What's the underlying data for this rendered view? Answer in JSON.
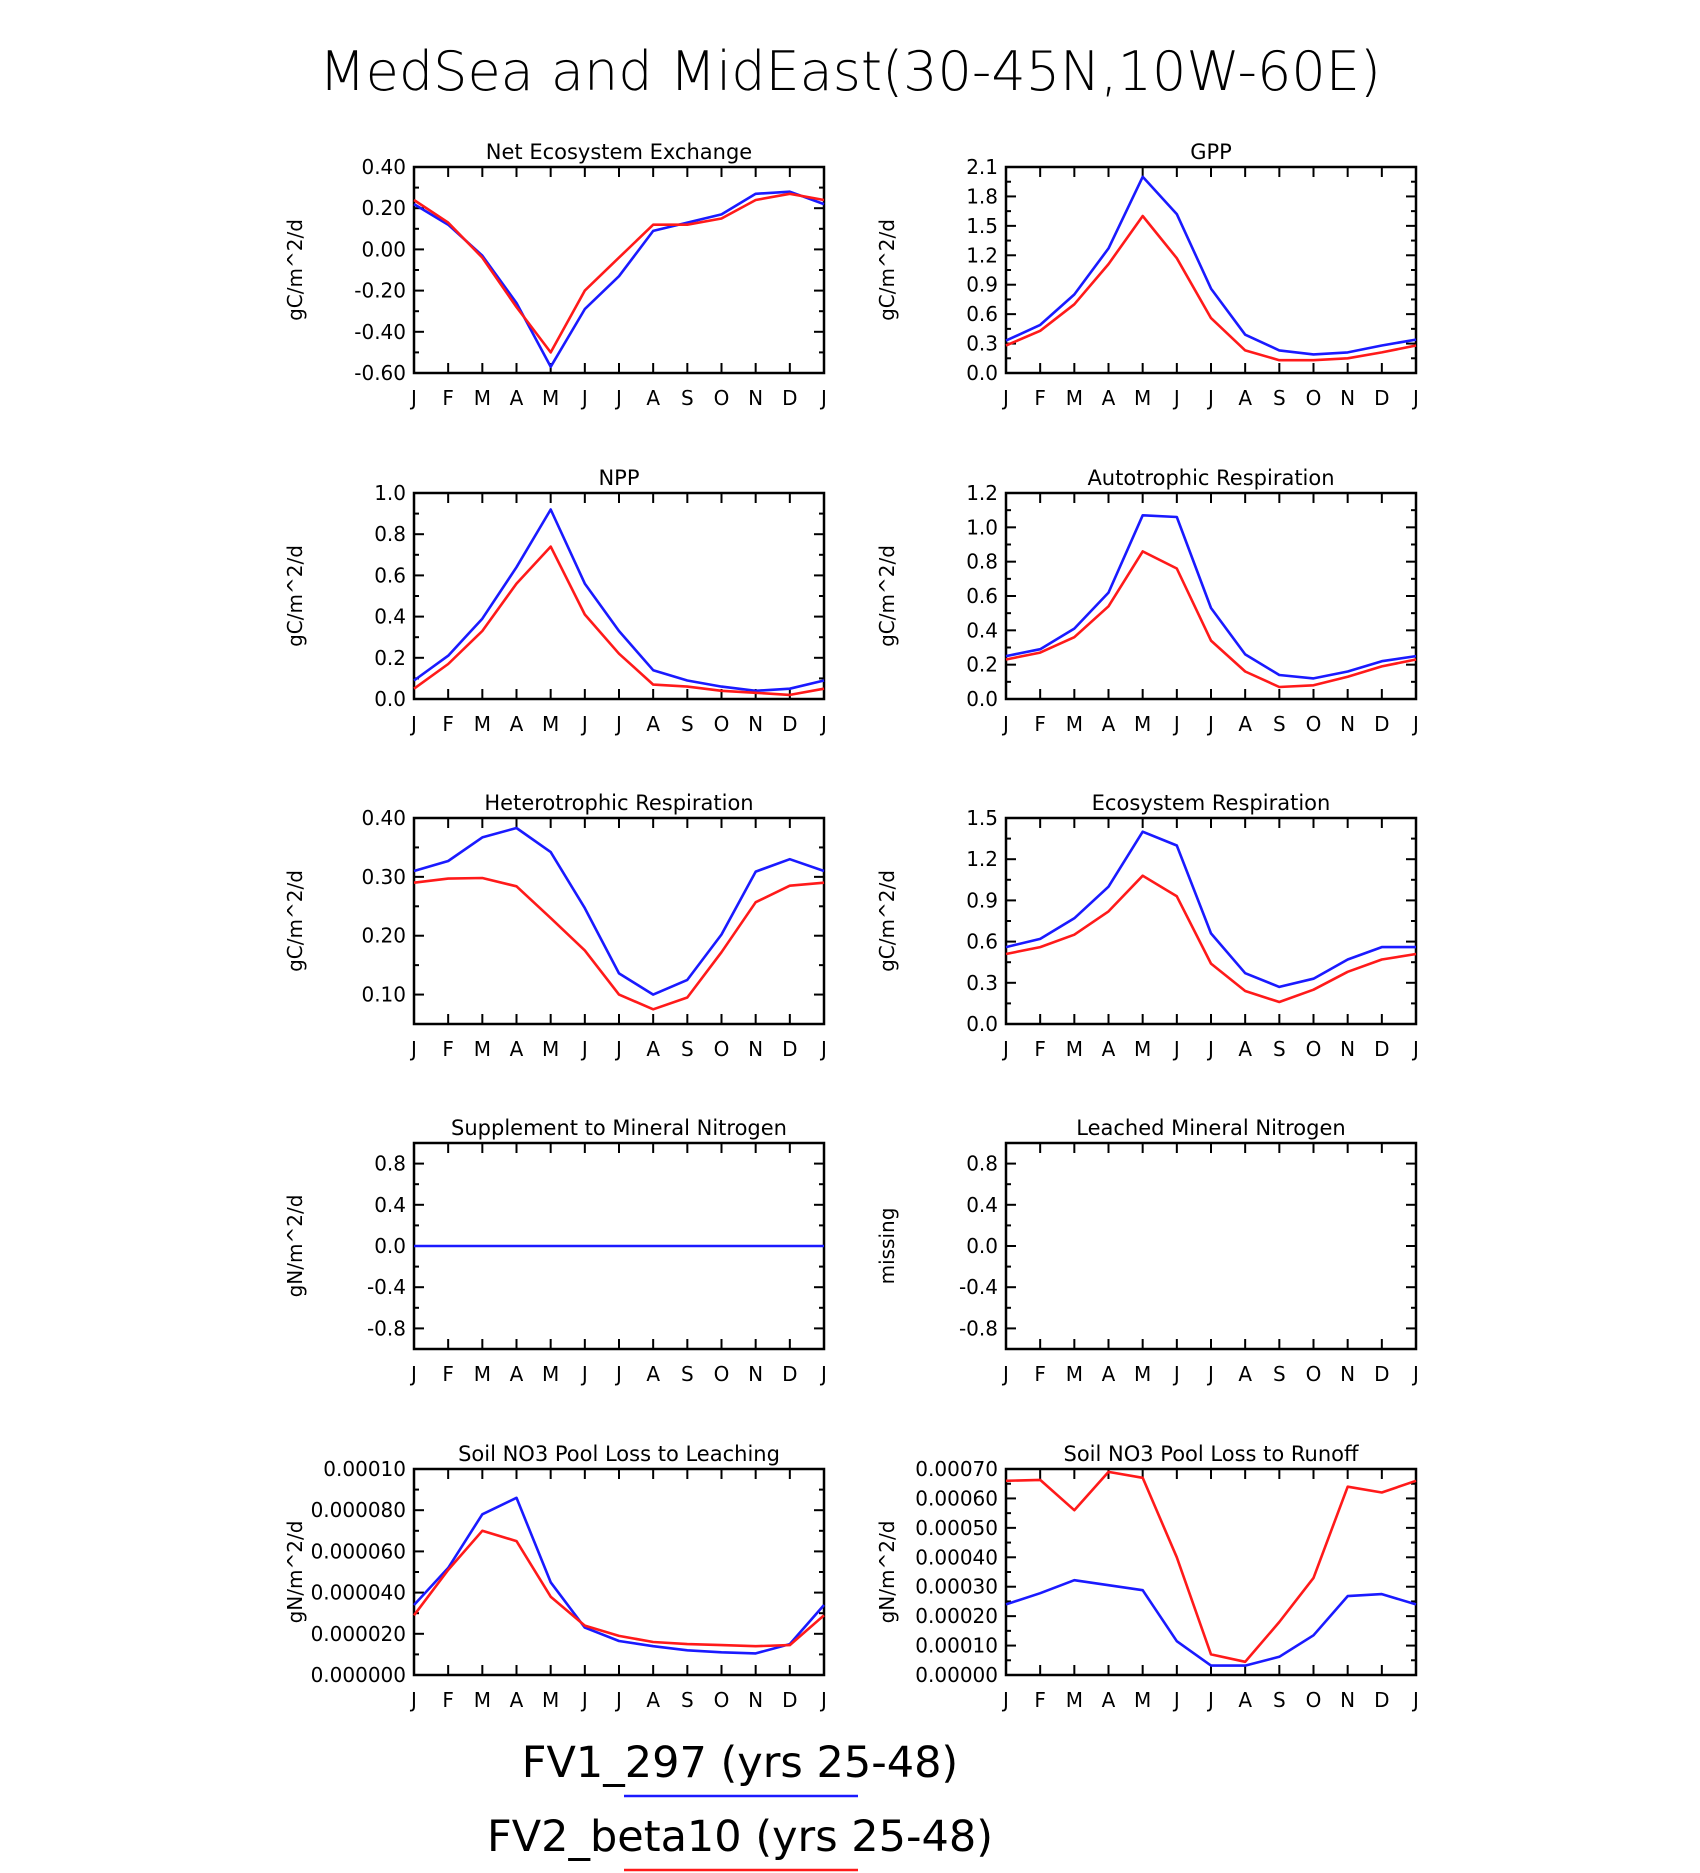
{
  "title": "MedSea and MidEast(30-45N,10W-60E)",
  "colors": {
    "FV1_297 (yrs 25-48)": "#1a1aff",
    "FV2_beta10 (yrs 25-48)": "#ff1a1a"
  },
  "legend": [
    {
      "label": "FV1_297 (yrs 25-48)",
      "color": "#1a1aff"
    },
    {
      "label": "FV2_beta10 (yrs 25-48)",
      "color": "#ff1a1a"
    }
  ],
  "chart_data": [
    {
      "type": "line",
      "title": "Net Ecosystem Exchange",
      "ylabel": "gC/m^2/d",
      "ylim": [
        -0.6,
        0.4
      ],
      "yticks": [
        "0.40",
        "0.20",
        "0.00",
        "-0.20",
        "-0.40",
        "-0.60"
      ],
      "categories": [
        "J",
        "F",
        "M",
        "A",
        "M",
        "J",
        "J",
        "A",
        "S",
        "O",
        "N",
        "D",
        "J"
      ],
      "series": [
        {
          "name": "FV1_297 (yrs 25-48)",
          "values": [
            0.22,
            0.12,
            -0.03,
            -0.26,
            -0.57,
            -0.29,
            -0.13,
            0.09,
            0.13,
            0.17,
            0.27,
            0.28,
            0.22
          ]
        },
        {
          "name": "FV2_beta10 (yrs 25-48)",
          "values": [
            0.24,
            0.13,
            -0.04,
            -0.28,
            -0.5,
            -0.2,
            -0.04,
            0.12,
            0.12,
            0.15,
            0.24,
            0.27,
            0.24
          ]
        }
      ]
    },
    {
      "type": "line",
      "title": "GPP",
      "ylabel": "gC/m^2/d",
      "ylim": [
        0,
        2.1
      ],
      "yticks": [
        "2.1",
        "1.8",
        "1.5",
        "1.2",
        "0.9",
        "0.6",
        "0.3",
        "0.0"
      ],
      "categories": [
        "J",
        "F",
        "M",
        "A",
        "M",
        "J",
        "J",
        "A",
        "S",
        "O",
        "N",
        "D",
        "J"
      ],
      "series": [
        {
          "name": "FV1_297 (yrs 25-48)",
          "values": [
            0.33,
            0.49,
            0.8,
            1.27,
            2.0,
            1.62,
            0.86,
            0.39,
            0.23,
            0.19,
            0.21,
            0.28,
            0.34
          ]
        },
        {
          "name": "FV2_beta10 (yrs 25-48)",
          "values": [
            0.28,
            0.43,
            0.7,
            1.11,
            1.6,
            1.17,
            0.56,
            0.23,
            0.13,
            0.13,
            0.15,
            0.21,
            0.28
          ]
        }
      ]
    },
    {
      "type": "line",
      "title": "NPP",
      "ylabel": "gC/m^2/d",
      "ylim": [
        0,
        1.0
      ],
      "yticks": [
        "1.0",
        "0.8",
        "0.6",
        "0.4",
        "0.2",
        "0.0"
      ],
      "categories": [
        "J",
        "F",
        "M",
        "A",
        "M",
        "J",
        "J",
        "A",
        "S",
        "O",
        "N",
        "D",
        "J"
      ],
      "series": [
        {
          "name": "FV1_297 (yrs 25-48)",
          "values": [
            0.09,
            0.21,
            0.39,
            0.64,
            0.92,
            0.56,
            0.33,
            0.14,
            0.09,
            0.06,
            0.04,
            0.05,
            0.09
          ]
        },
        {
          "name": "FV2_beta10 (yrs 25-48)",
          "values": [
            0.05,
            0.17,
            0.33,
            0.56,
            0.74,
            0.41,
            0.22,
            0.07,
            0.06,
            0.04,
            0.03,
            0.02,
            0.05
          ]
        }
      ]
    },
    {
      "type": "line",
      "title": "Autotrophic Respiration",
      "ylabel": "gC/m^2/d",
      "ylim": [
        0,
        1.2
      ],
      "yticks": [
        "1.2",
        "1.0",
        "0.8",
        "0.6",
        "0.4",
        "0.2",
        "0.0"
      ],
      "categories": [
        "J",
        "F",
        "M",
        "A",
        "M",
        "J",
        "J",
        "A",
        "S",
        "O",
        "N",
        "D",
        "J"
      ],
      "series": [
        {
          "name": "FV1_297 (yrs 25-48)",
          "values": [
            0.25,
            0.29,
            0.41,
            0.62,
            1.07,
            1.06,
            0.53,
            0.26,
            0.14,
            0.12,
            0.16,
            0.22,
            0.25
          ]
        },
        {
          "name": "FV2_beta10 (yrs 25-48)",
          "values": [
            0.23,
            0.27,
            0.36,
            0.54,
            0.86,
            0.76,
            0.34,
            0.16,
            0.07,
            0.08,
            0.13,
            0.19,
            0.23
          ]
        }
      ]
    },
    {
      "type": "line",
      "title": "Heterotrophic Respiration",
      "ylabel": "gC/m^2/d",
      "ylim": [
        0.05,
        0.4
      ],
      "yticks": [
        "0.40",
        "0.30",
        "0.20",
        "0.10"
      ],
      "categories": [
        "J",
        "F",
        "M",
        "A",
        "M",
        "J",
        "J",
        "A",
        "S",
        "O",
        "N",
        "D",
        "J"
      ],
      "series": [
        {
          "name": "FV1_297 (yrs 25-48)",
          "values": [
            0.31,
            0.327,
            0.367,
            0.383,
            0.342,
            0.247,
            0.136,
            0.1,
            0.125,
            0.202,
            0.309,
            0.33,
            0.31
          ]
        },
        {
          "name": "FV2_beta10 (yrs 25-48)",
          "values": [
            0.29,
            0.297,
            0.298,
            0.284,
            0.23,
            0.175,
            0.1,
            0.075,
            0.095,
            0.172,
            0.257,
            0.285,
            0.29
          ]
        }
      ]
    },
    {
      "type": "line",
      "title": "Ecosystem Respiration",
      "ylabel": "gC/m^2/d",
      "ylim": [
        0,
        1.5
      ],
      "yticks": [
        "1.5",
        "1.2",
        "0.9",
        "0.6",
        "0.3",
        "0.0"
      ],
      "categories": [
        "J",
        "F",
        "M",
        "A",
        "M",
        "J",
        "J",
        "A",
        "S",
        "O",
        "N",
        "D",
        "J"
      ],
      "series": [
        {
          "name": "FV1_297 (yrs 25-48)",
          "values": [
            0.56,
            0.62,
            0.77,
            1.0,
            1.4,
            1.3,
            0.66,
            0.37,
            0.27,
            0.33,
            0.47,
            0.56,
            0.56
          ]
        },
        {
          "name": "FV2_beta10 (yrs 25-48)",
          "values": [
            0.51,
            0.56,
            0.65,
            0.82,
            1.08,
            0.93,
            0.44,
            0.24,
            0.16,
            0.25,
            0.38,
            0.47,
            0.51
          ]
        }
      ]
    },
    {
      "type": "line",
      "title": "Supplement to Mineral Nitrogen",
      "ylabel": "gN/m^2/d",
      "ylim": [
        -1.0,
        1.0
      ],
      "yticks": [
        "0.8",
        "0.4",
        "0.0",
        "-0.4",
        "-0.8"
      ],
      "ytickvalues": [
        0.8,
        0.4,
        0.0,
        -0.4,
        -0.8
      ],
      "categories": [
        "J",
        "F",
        "M",
        "A",
        "M",
        "J",
        "J",
        "A",
        "S",
        "O",
        "N",
        "D",
        "J"
      ],
      "series": [
        {
          "name": "FV1_297 (yrs 25-48)",
          "values": [
            0,
            0,
            0,
            0,
            0,
            0,
            0,
            0,
            0,
            0,
            0,
            0,
            0
          ]
        }
      ]
    },
    {
      "type": "line",
      "title": "Leached Mineral Nitrogen",
      "ylabel": "missing",
      "ylim": [
        -1.0,
        1.0
      ],
      "yticks": [
        "0.8",
        "0.4",
        "0.0",
        "-0.4",
        "-0.8"
      ],
      "ytickvalues": [
        0.8,
        0.4,
        0.0,
        -0.4,
        -0.8
      ],
      "categories": [
        "J",
        "F",
        "M",
        "A",
        "M",
        "J",
        "J",
        "A",
        "S",
        "O",
        "N",
        "D",
        "J"
      ],
      "series": []
    },
    {
      "type": "line",
      "title": "Soil NO3 Pool Loss to Leaching",
      "ylabel": "gN/m^2/d",
      "ylim": [
        0,
        0.0001
      ],
      "yticks": [
        "0.00010",
        "0.000080",
        "0.000060",
        "0.000040",
        "0.000020",
        "0.000000"
      ],
      "categories": [
        "J",
        "F",
        "M",
        "A",
        "M",
        "J",
        "J",
        "A",
        "S",
        "O",
        "N",
        "D",
        "J"
      ],
      "series": [
        {
          "name": "FV1_297 (yrs 25-48)",
          "values": [
            3.4e-05,
            5.2e-05,
            7.8e-05,
            8.6e-05,
            4.5e-05,
            2.3e-05,
            1.65e-05,
            1.4e-05,
            1.2e-05,
            1.1e-05,
            1.05e-05,
            1.5e-05,
            3.4e-05
          ]
        },
        {
          "name": "FV2_beta10 (yrs 25-48)",
          "values": [
            2.9e-05,
            5.1e-05,
            7e-05,
            6.5e-05,
            3.8e-05,
            2.4e-05,
            1.9e-05,
            1.6e-05,
            1.5e-05,
            1.45e-05,
            1.4e-05,
            1.45e-05,
            2.9e-05
          ]
        }
      ]
    },
    {
      "type": "line",
      "title": "Soil NO3 Pool Loss to Runoff",
      "ylabel": "gN/m^2/d",
      "ylim": [
        0,
        0.0007
      ],
      "yticks": [
        "0.00070",
        "0.00060",
        "0.00050",
        "0.00040",
        "0.00030",
        "0.00020",
        "0.00010",
        "0.00000"
      ],
      "categories": [
        "J",
        "F",
        "M",
        "A",
        "M",
        "J",
        "J",
        "A",
        "S",
        "O",
        "N",
        "D",
        "J"
      ],
      "series": [
        {
          "name": "FV1_297 (yrs 25-48)",
          "values": [
            0.00024,
            0.000278,
            0.000322,
            0.000305,
            0.000288,
            0.000115,
            3.2e-05,
            3.2e-05,
            6.2e-05,
            0.000135,
            0.000268,
            0.000275,
            0.00024
          ]
        },
        {
          "name": "FV2_beta10 (yrs 25-48)",
          "values": [
            0.00066,
            0.000663,
            0.00056,
            0.00069,
            0.00067,
            0.0004,
            7e-05,
            4.5e-05,
            0.00018,
            0.00033,
            0.00064,
            0.00062,
            0.00066
          ]
        }
      ]
    }
  ]
}
